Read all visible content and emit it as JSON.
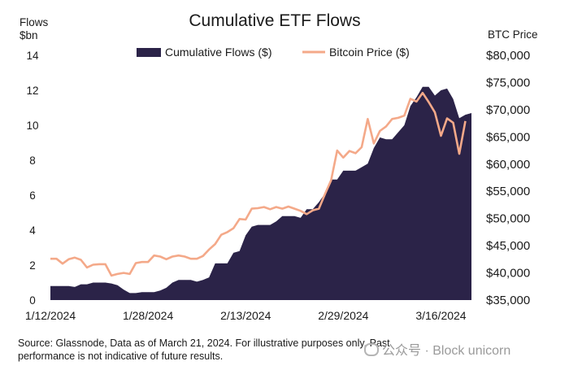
{
  "chart_data": {
    "type": "area+line",
    "title": "Cumulative ETF Flows",
    "left_axis_title": [
      "Flows",
      "$bn"
    ],
    "right_axis_title": "BTC Price",
    "left_ylim": [
      0,
      14
    ],
    "left_ticks": [
      0,
      2,
      4,
      6,
      8,
      10,
      12,
      14
    ],
    "right_ylim": [
      35000,
      80000
    ],
    "right_ticks": [
      "$35,000",
      "$40,000",
      "$45,000",
      "$50,000",
      "$55,000",
      "$60,000",
      "$65,000",
      "$70,000",
      "$75,000",
      "$80,000"
    ],
    "x_ticks": [
      "1/12/2024",
      "1/28/2024",
      "2/13/2024",
      "2/29/2024",
      "3/16/2024"
    ],
    "x_start": "2024-01-12",
    "x_end": "2024-03-21",
    "grid": false,
    "legend_position": "top-center",
    "series": [
      {
        "name": "Cumulative Flows ($)",
        "kind": "area",
        "color": "#2b2348",
        "points": [
          [
            "2024-01-12",
            0.8
          ],
          [
            "2024-01-13",
            0.8
          ],
          [
            "2024-01-14",
            0.8
          ],
          [
            "2024-01-15",
            0.8
          ],
          [
            "2024-01-16",
            0.75
          ],
          [
            "2024-01-17",
            0.9
          ],
          [
            "2024-01-18",
            0.9
          ],
          [
            "2024-01-19",
            1.0
          ],
          [
            "2024-01-20",
            1.0
          ],
          [
            "2024-01-21",
            1.0
          ],
          [
            "2024-01-22",
            0.95
          ],
          [
            "2024-01-23",
            0.85
          ],
          [
            "2024-01-24",
            0.6
          ],
          [
            "2024-01-25",
            0.4
          ],
          [
            "2024-01-26",
            0.4
          ],
          [
            "2024-01-27",
            0.45
          ],
          [
            "2024-01-28",
            0.45
          ],
          [
            "2024-01-29",
            0.45
          ],
          [
            "2024-01-30",
            0.55
          ],
          [
            "2024-01-31",
            0.7
          ],
          [
            "2024-02-01",
            1.0
          ],
          [
            "2024-02-02",
            1.15
          ],
          [
            "2024-02-03",
            1.15
          ],
          [
            "2024-02-04",
            1.15
          ],
          [
            "2024-02-05",
            1.05
          ],
          [
            "2024-02-06",
            1.15
          ],
          [
            "2024-02-07",
            1.3
          ],
          [
            "2024-02-08",
            2.1
          ],
          [
            "2024-02-09",
            2.1
          ],
          [
            "2024-02-10",
            2.1
          ],
          [
            "2024-02-11",
            2.7
          ],
          [
            "2024-02-12",
            2.8
          ],
          [
            "2024-02-13",
            3.7
          ],
          [
            "2024-02-14",
            4.2
          ],
          [
            "2024-02-15",
            4.3
          ],
          [
            "2024-02-16",
            4.3
          ],
          [
            "2024-02-17",
            4.3
          ],
          [
            "2024-02-18",
            4.5
          ],
          [
            "2024-02-19",
            4.8
          ],
          [
            "2024-02-20",
            4.8
          ],
          [
            "2024-02-21",
            4.8
          ],
          [
            "2024-02-22",
            4.7
          ],
          [
            "2024-02-23",
            5.2
          ],
          [
            "2024-02-24",
            5.2
          ],
          [
            "2024-02-25",
            5.6
          ],
          [
            "2024-02-26",
            6.1
          ],
          [
            "2024-02-27",
            6.9
          ],
          [
            "2024-02-28",
            6.9
          ],
          [
            "2024-02-29",
            7.4
          ],
          [
            "2024-03-01",
            7.4
          ],
          [
            "2024-03-02",
            7.4
          ],
          [
            "2024-03-03",
            7.6
          ],
          [
            "2024-03-04",
            7.8
          ],
          [
            "2024-03-05",
            8.7
          ],
          [
            "2024-03-06",
            9.3
          ],
          [
            "2024-03-07",
            9.2
          ],
          [
            "2024-03-08",
            9.2
          ],
          [
            "2024-03-09",
            9.6
          ],
          [
            "2024-03-10",
            10.0
          ],
          [
            "2024-03-11",
            11.1
          ],
          [
            "2024-03-12",
            11.6
          ],
          [
            "2024-03-13",
            12.2
          ],
          [
            "2024-03-14",
            12.2
          ],
          [
            "2024-03-15",
            11.7
          ],
          [
            "2024-03-16",
            12.0
          ],
          [
            "2024-03-17",
            12.1
          ],
          [
            "2024-03-18",
            11.5
          ],
          [
            "2024-03-19",
            10.4
          ],
          [
            "2024-03-20",
            10.6
          ],
          [
            "2024-03-21",
            10.7
          ]
        ]
      },
      {
        "name": "Bitcoin Price ($)",
        "kind": "line",
        "axis": "right",
        "color": "#f4a989",
        "points": [
          [
            "2024-01-12",
            42600
          ],
          [
            "2024-01-13",
            42600
          ],
          [
            "2024-01-14",
            41700
          ],
          [
            "2024-01-15",
            42500
          ],
          [
            "2024-01-16",
            42800
          ],
          [
            "2024-01-17",
            42400
          ],
          [
            "2024-01-18",
            41000
          ],
          [
            "2024-01-19",
            41500
          ],
          [
            "2024-01-20",
            41600
          ],
          [
            "2024-01-21",
            41600
          ],
          [
            "2024-01-22",
            39500
          ],
          [
            "2024-01-23",
            39800
          ],
          [
            "2024-01-24",
            40000
          ],
          [
            "2024-01-25",
            39800
          ],
          [
            "2024-01-26",
            41800
          ],
          [
            "2024-01-27",
            42000
          ],
          [
            "2024-01-28",
            42000
          ],
          [
            "2024-01-29",
            43200
          ],
          [
            "2024-01-30",
            43000
          ],
          [
            "2024-01-31",
            42500
          ],
          [
            "2024-02-01",
            43000
          ],
          [
            "2024-02-02",
            43200
          ],
          [
            "2024-02-03",
            43000
          ],
          [
            "2024-02-04",
            42600
          ],
          [
            "2024-02-05",
            42600
          ],
          [
            "2024-02-06",
            43100
          ],
          [
            "2024-02-07",
            44300
          ],
          [
            "2024-02-08",
            45300
          ],
          [
            "2024-02-09",
            47000
          ],
          [
            "2024-02-10",
            47500
          ],
          [
            "2024-02-11",
            48200
          ],
          [
            "2024-02-12",
            49900
          ],
          [
            "2024-02-13",
            49800
          ],
          [
            "2024-02-14",
            51800
          ],
          [
            "2024-02-15",
            51900
          ],
          [
            "2024-02-16",
            52100
          ],
          [
            "2024-02-17",
            51700
          ],
          [
            "2024-02-18",
            52100
          ],
          [
            "2024-02-19",
            51800
          ],
          [
            "2024-02-20",
            52200
          ],
          [
            "2024-02-21",
            51800
          ],
          [
            "2024-02-22",
            51400
          ],
          [
            "2024-02-23",
            50800
          ],
          [
            "2024-02-24",
            51500
          ],
          [
            "2024-02-25",
            51800
          ],
          [
            "2024-02-26",
            54500
          ],
          [
            "2024-02-27",
            57000
          ],
          [
            "2024-02-28",
            62500
          ],
          [
            "2024-02-29",
            61200
          ],
          [
            "2024-03-01",
            62400
          ],
          [
            "2024-03-02",
            62000
          ],
          [
            "2024-03-03",
            63100
          ],
          [
            "2024-03-04",
            68300
          ],
          [
            "2024-03-05",
            63800
          ],
          [
            "2024-03-06",
            66100
          ],
          [
            "2024-03-07",
            66900
          ],
          [
            "2024-03-08",
            68300
          ],
          [
            "2024-03-09",
            68500
          ],
          [
            "2024-03-10",
            68900
          ],
          [
            "2024-03-11",
            72000
          ],
          [
            "2024-03-12",
            71500
          ],
          [
            "2024-03-13",
            73100
          ],
          [
            "2024-03-14",
            71400
          ],
          [
            "2024-03-15",
            69500
          ],
          [
            "2024-03-16",
            65200
          ],
          [
            "2024-03-17",
            68400
          ],
          [
            "2024-03-18",
            67600
          ],
          [
            "2024-03-19",
            61900
          ],
          [
            "2024-03-20",
            67900
          ]
        ]
      }
    ]
  },
  "footnote": "Source: Glassnode, Data as of March 21, 2024. For illustrative purposes only. Past performance is not indicative of future results.",
  "watermark": "公众号 · Block unicorn"
}
